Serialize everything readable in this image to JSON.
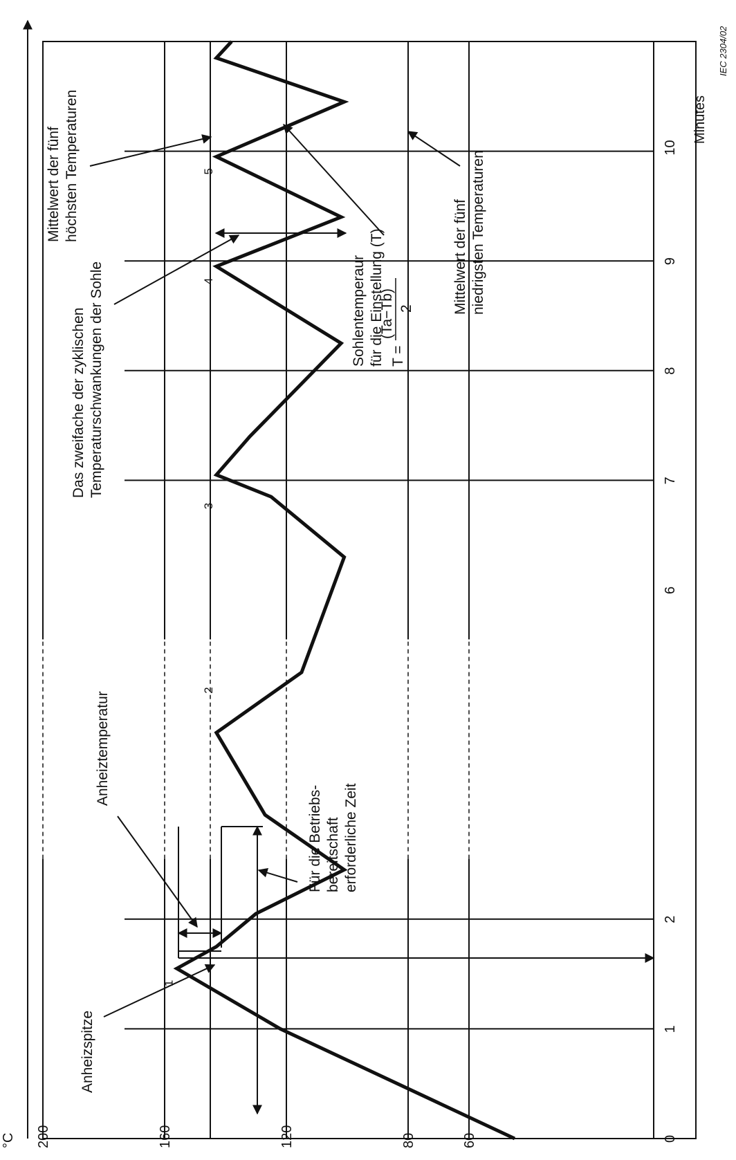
{
  "chart_data": {
    "type": "line",
    "ylabel": "°C",
    "xlabel": "Minutes",
    "x_ticks": [
      "0",
      "1",
      "2",
      "",
      "",
      "6",
      "7",
      "8",
      "9",
      "10"
    ],
    "y_ticks": [
      "60",
      "80",
      "120",
      "160",
      "200"
    ],
    "y_tick_values": [
      60,
      80,
      120,
      160,
      200
    ],
    "xlim": [
      0,
      10
    ],
    "ylim": [
      40,
      200
    ],
    "series": [
      {
        "points": [
          [
            0.0,
            45
          ],
          [
            1.0,
            122
          ],
          [
            1.5,
            154
          ],
          [
            1.7,
            144
          ],
          [
            2.95,
            101
          ],
          [
            3.35,
            143
          ],
          [
            3.9,
            104
          ],
          [
            4.25,
            143
          ],
          [
            4.8,
            103
          ],
          [
            5.4,
            145
          ],
          [
            5.75,
            104
          ],
          [
            6.15,
            146
          ],
          [
            6.55,
            104
          ],
          [
            6.9,
            146
          ],
          [
            7.25,
            103
          ],
          [
            7.45,
            145
          ]
        ]
      }
    ],
    "peak_labels": [
      "1",
      "2",
      "3",
      "4",
      "5"
    ],
    "annotations": {
      "peak": "Anheizspitze",
      "preheat": "Anheiztemperatur",
      "ready_l1": "Für die Betriebs-",
      "ready_l2": "bereitschaft",
      "ready_l3": "erforderliche Zeit",
      "swing_l1": "Das zweifache der zyklischen",
      "swing_l2": "Temperaturschwankungen der Sohle",
      "sole_l1": "Sohlentemperaur",
      "sole_l2": "für die Einstellung (T)",
      "formula_lhs": "T =",
      "formula_num": "(Ta−Tb)",
      "formula_den": "2",
      "high_l1": "Mittelwert der fünf",
      "high_l2": "höchsten Temperaturen",
      "low_l1": "Mittelwert der fünf",
      "low_l2": "niedrigsten Temperaturen"
    },
    "reference": "IEC  2304/02"
  }
}
